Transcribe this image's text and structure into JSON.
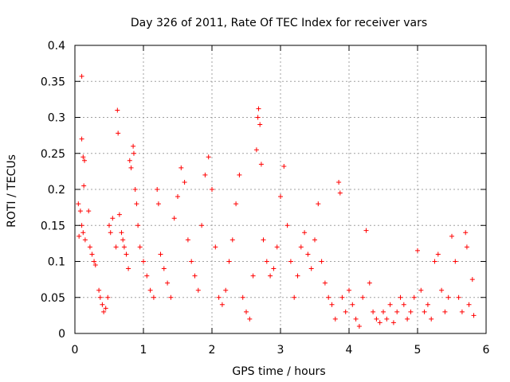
{
  "chart_data": {
    "type": "scatter",
    "title": "Day 326 of 2011, Rate Of TEC Index for receiver vars",
    "xlabel": "GPS time / hours",
    "ylabel": "ROTI / TECUs",
    "xlim": [
      0,
      6
    ],
    "ylim": [
      0,
      0.4
    ],
    "x_ticks": [
      0,
      1,
      2,
      3,
      4,
      5,
      6
    ],
    "x_tick_labels": [
      "0",
      "1",
      "2",
      "3",
      "4",
      "5",
      "6"
    ],
    "y_ticks": [
      0,
      0.05,
      0.1,
      0.15,
      0.2,
      0.25,
      0.3,
      0.35,
      0.4
    ],
    "y_tick_labels": [
      "0",
      "0.05",
      "0.1",
      "0.15",
      "0.2",
      "0.25",
      "0.3",
      "0.35",
      "0.4"
    ],
    "grid": true,
    "marker": "+",
    "series": [
      {
        "name": "vars",
        "color": "#ff0000",
        "points": [
          [
            0.1,
            0.357
          ],
          [
            0.1,
            0.27
          ],
          [
            0.12,
            0.245
          ],
          [
            0.14,
            0.24
          ],
          [
            0.13,
            0.205
          ],
          [
            0.05,
            0.18
          ],
          [
            0.08,
            0.17
          ],
          [
            0.1,
            0.15
          ],
          [
            0.12,
            0.14
          ],
          [
            0.06,
            0.135
          ],
          [
            0.15,
            0.13
          ],
          [
            0.2,
            0.17
          ],
          [
            0.22,
            0.12
          ],
          [
            0.25,
            0.11
          ],
          [
            0.28,
            0.1
          ],
          [
            0.3,
            0.095
          ],
          [
            0.35,
            0.06
          ],
          [
            0.37,
            0.05
          ],
          [
            0.4,
            0.04
          ],
          [
            0.42,
            0.03
          ],
          [
            0.45,
            0.035
          ],
          [
            0.48,
            0.05
          ],
          [
            0.5,
            0.15
          ],
          [
            0.52,
            0.14
          ],
          [
            0.55,
            0.16
          ],
          [
            0.6,
            0.12
          ],
          [
            0.62,
            0.31
          ],
          [
            0.63,
            0.278
          ],
          [
            0.65,
            0.165
          ],
          [
            0.68,
            0.14
          ],
          [
            0.7,
            0.13
          ],
          [
            0.72,
            0.12
          ],
          [
            0.75,
            0.11
          ],
          [
            0.78,
            0.09
          ],
          [
            0.8,
            0.24
          ],
          [
            0.82,
            0.23
          ],
          [
            0.85,
            0.26
          ],
          [
            0.86,
            0.25
          ],
          [
            0.88,
            0.2
          ],
          [
            0.9,
            0.18
          ],
          [
            0.92,
            0.15
          ],
          [
            0.95,
            0.12
          ],
          [
            1.0,
            0.1
          ],
          [
            1.05,
            0.08
          ],
          [
            1.1,
            0.06
          ],
          [
            1.15,
            0.05
          ],
          [
            1.2,
            0.2
          ],
          [
            1.22,
            0.18
          ],
          [
            1.25,
            0.11
          ],
          [
            1.3,
            0.09
          ],
          [
            1.35,
            0.07
          ],
          [
            1.4,
            0.05
          ],
          [
            1.45,
            0.16
          ],
          [
            1.5,
            0.19
          ],
          [
            1.55,
            0.23
          ],
          [
            1.6,
            0.21
          ],
          [
            1.65,
            0.13
          ],
          [
            1.7,
            0.1
          ],
          [
            1.75,
            0.08
          ],
          [
            1.8,
            0.06
          ],
          [
            1.85,
            0.15
          ],
          [
            1.9,
            0.22
          ],
          [
            1.95,
            0.245
          ],
          [
            2.0,
            0.2
          ],
          [
            2.05,
            0.12
          ],
          [
            2.1,
            0.05
          ],
          [
            2.15,
            0.04
          ],
          [
            2.2,
            0.06
          ],
          [
            2.25,
            0.1
          ],
          [
            2.3,
            0.13
          ],
          [
            2.35,
            0.18
          ],
          [
            2.4,
            0.22
          ],
          [
            2.45,
            0.05
          ],
          [
            2.5,
            0.03
          ],
          [
            2.55,
            0.02
          ],
          [
            2.6,
            0.08
          ],
          [
            2.65,
            0.255
          ],
          [
            2.67,
            0.3
          ],
          [
            2.68,
            0.312
          ],
          [
            2.7,
            0.29
          ],
          [
            2.72,
            0.235
          ],
          [
            2.75,
            0.13
          ],
          [
            2.8,
            0.1
          ],
          [
            2.85,
            0.08
          ],
          [
            2.9,
            0.09
          ],
          [
            2.95,
            0.12
          ],
          [
            3.0,
            0.19
          ],
          [
            3.05,
            0.232
          ],
          [
            3.1,
            0.15
          ],
          [
            3.15,
            0.1
          ],
          [
            3.2,
            0.05
          ],
          [
            3.25,
            0.08
          ],
          [
            3.3,
            0.12
          ],
          [
            3.35,
            0.14
          ],
          [
            3.4,
            0.11
          ],
          [
            3.45,
            0.09
          ],
          [
            3.5,
            0.13
          ],
          [
            3.55,
            0.18
          ],
          [
            3.6,
            0.1
          ],
          [
            3.65,
            0.07
          ],
          [
            3.7,
            0.05
          ],
          [
            3.75,
            0.04
          ],
          [
            3.8,
            0.02
          ],
          [
            3.85,
            0.21
          ],
          [
            3.87,
            0.195
          ],
          [
            3.9,
            0.05
          ],
          [
            3.95,
            0.03
          ],
          [
            4.0,
            0.06
          ],
          [
            4.05,
            0.04
          ],
          [
            4.1,
            0.02
          ],
          [
            4.15,
            0.01
          ],
          [
            4.2,
            0.05
          ],
          [
            4.25,
            0.143
          ],
          [
            4.3,
            0.07
          ],
          [
            4.35,
            0.03
          ],
          [
            4.4,
            0.02
          ],
          [
            4.45,
            0.015
          ],
          [
            4.5,
            0.03
          ],
          [
            4.55,
            0.02
          ],
          [
            4.6,
            0.04
          ],
          [
            4.65,
            0.015
          ],
          [
            4.7,
            0.03
          ],
          [
            4.75,
            0.05
          ],
          [
            4.8,
            0.04
          ],
          [
            4.85,
            0.02
          ],
          [
            4.9,
            0.03
          ],
          [
            4.95,
            0.05
          ],
          [
            5.0,
            0.115
          ],
          [
            5.05,
            0.06
          ],
          [
            5.1,
            0.03
          ],
          [
            5.15,
            0.04
          ],
          [
            5.2,
            0.02
          ],
          [
            5.25,
            0.1
          ],
          [
            5.3,
            0.11
          ],
          [
            5.35,
            0.06
          ],
          [
            5.4,
            0.03
          ],
          [
            5.45,
            0.05
          ],
          [
            5.5,
            0.135
          ],
          [
            5.55,
            0.1
          ],
          [
            5.6,
            0.05
          ],
          [
            5.65,
            0.03
          ],
          [
            5.7,
            0.14
          ],
          [
            5.72,
            0.12
          ],
          [
            5.75,
            0.04
          ],
          [
            5.8,
            0.075
          ],
          [
            5.82,
            0.025
          ]
        ]
      }
    ]
  }
}
